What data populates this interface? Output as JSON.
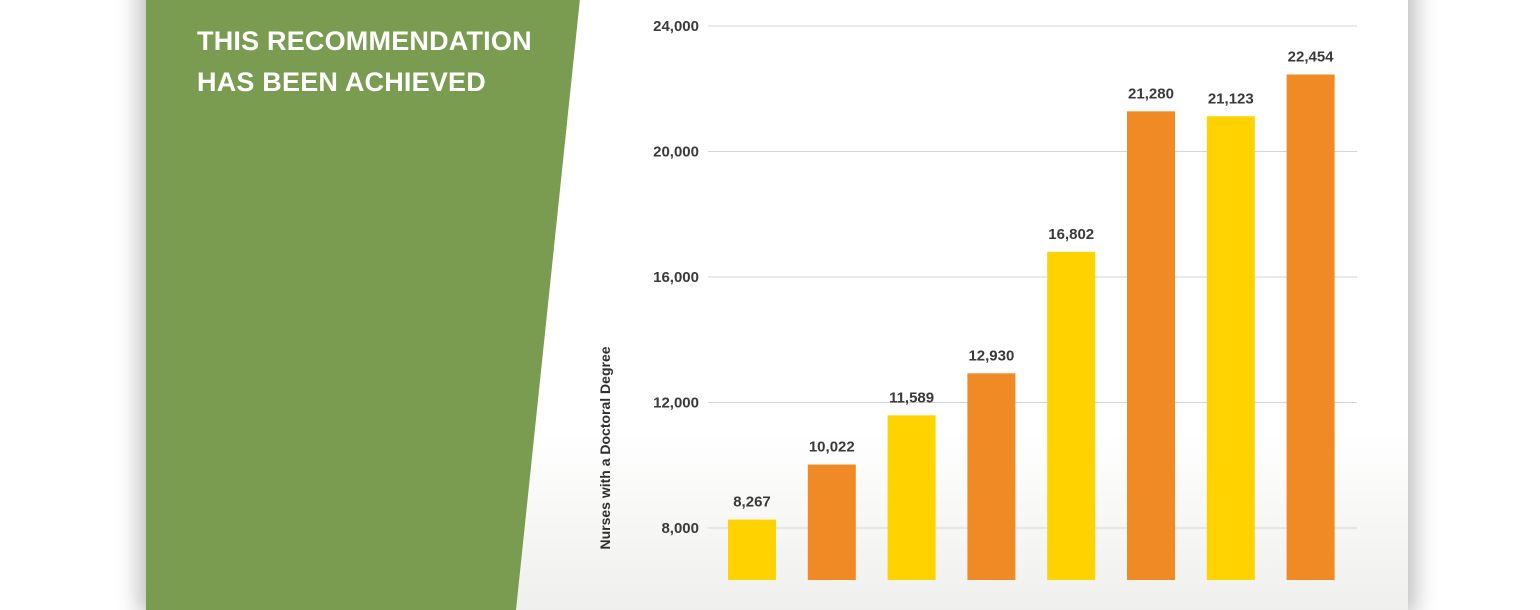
{
  "badge": {
    "line1": "THIS RECOMMENDATION",
    "line2": "HAS BEEN ACHIEVED",
    "color": "#799c50"
  },
  "chart_data": {
    "type": "bar",
    "ylabel": "Nurses with a Doctoral Degree",
    "ylim": [
      6000,
      24000
    ],
    "yticks": [
      8000,
      12000,
      16000,
      20000,
      24000
    ],
    "ytick_labels": [
      "8,000",
      "12,000",
      "16,000",
      "20,000",
      "24,000"
    ],
    "grid": true,
    "values": [
      8267,
      10022,
      11589,
      12930,
      16802,
      21280,
      21123,
      22454
    ],
    "value_labels": [
      "8,267",
      "10,022",
      "11,589",
      "12,930",
      "16,802",
      "21,280",
      "21,123",
      "22,454"
    ],
    "colors": [
      "#ffd200",
      "#f08a24",
      "#ffd200",
      "#f08a24",
      "#ffd200",
      "#f08a24",
      "#ffd200",
      "#f08a24"
    ]
  }
}
